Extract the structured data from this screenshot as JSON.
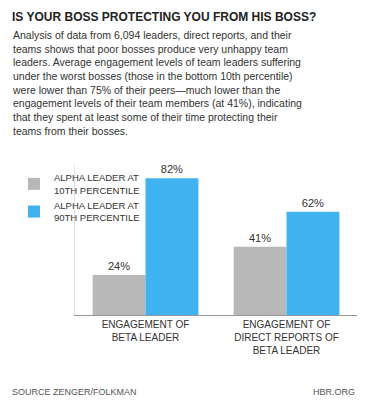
{
  "chart_data": {
    "type": "bar",
    "title": "IS YOUR BOSS PROTECTING YOU FROM HIS BOSS?",
    "subtitle": "Analysis of data from 6,094 leaders, direct reports, and their\nteams shows that poor bosses produce very unhappy team\nleaders. Average engagement levels of team leaders suffering\nunder the worst bosses (those in the bottom 10th percentile)\nwere lower than 75% of their peers—much lower than the\nengagement levels of their team members (at 41%), indicating\nthat they spent at least some of their time protecting their\nteams from their bosses.",
    "categories": [
      "ENGAGEMENT OF\nBETA LEADER",
      "ENGAGEMENT OF\nDIRECT REPORTS OF\nBETA LEADER"
    ],
    "series": [
      {
        "name": "ALPHA LEADER AT\n10TH PERCENTILE",
        "color": "#b8b8b8",
        "values": [
          24,
          41
        ],
        "value_labels": [
          "24%",
          "41%"
        ]
      },
      {
        "name": "ALPHA LEADER AT\n90TH PERCENTILE",
        "color": "#40b2f0",
        "values": [
          82,
          62
        ],
        "value_labels": [
          "82%",
          "62%"
        ]
      }
    ],
    "ylim": [
      0,
      90
    ],
    "grid": false,
    "data_labels": true,
    "tick_labels": "x",
    "legend": "upper left",
    "annotations": [
      "SOURCE ZENGER/FOLKMAN",
      "HBR.ORG"
    ]
  }
}
